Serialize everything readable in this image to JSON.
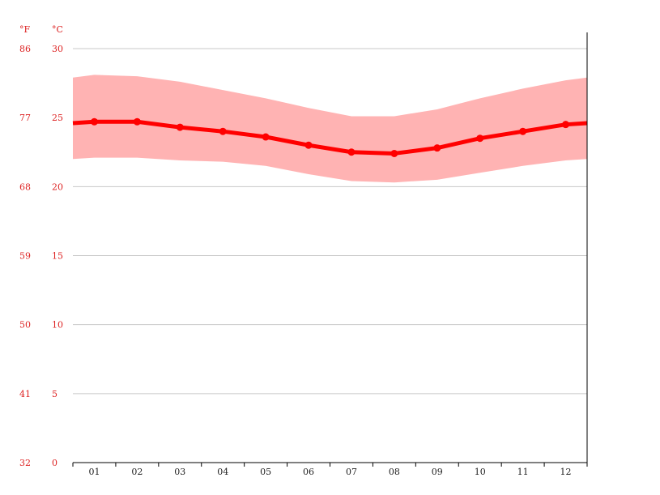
{
  "chart_data": {
    "type": "line",
    "units": {
      "fahrenheit": "°F",
      "celsius": "°C"
    },
    "categories": [
      "01",
      "02",
      "03",
      "04",
      "05",
      "06",
      "07",
      "08",
      "09",
      "10",
      "11",
      "12"
    ],
    "ylim": [
      0,
      30
    ],
    "y_ticks_celsius": [
      "0",
      "5",
      "10",
      "15",
      "20",
      "25",
      "30"
    ],
    "y_ticks_fahrenheit": [
      "32",
      "41",
      "50",
      "59",
      "68",
      "77",
      "86"
    ],
    "grid": true,
    "series": [
      {
        "role": "mean",
        "values": [
          24.7,
          24.7,
          24.3,
          24.0,
          23.6,
          23.0,
          22.5,
          22.4,
          22.8,
          23.5,
          24.0,
          24.5
        ]
      },
      {
        "role": "max",
        "values": [
          28.1,
          28.0,
          27.6,
          27.0,
          26.4,
          25.7,
          25.1,
          25.1,
          25.6,
          26.4,
          27.1,
          27.7
        ]
      },
      {
        "role": "min",
        "values": [
          22.1,
          22.1,
          21.9,
          21.8,
          21.5,
          20.9,
          20.4,
          20.3,
          20.5,
          21.0,
          21.5,
          21.9
        ]
      }
    ],
    "edge_values": {
      "mean_start": 24.6,
      "mean_end": 24.6,
      "max_start": 27.9,
      "max_end": 27.9,
      "min_start": 22.0,
      "min_end": 22.0
    },
    "colors": {
      "line": "#ff0000",
      "band": "#ffb3b3",
      "grid": "#c8c8c8",
      "axis_text": "#dd2222",
      "axis": "#000000"
    }
  }
}
